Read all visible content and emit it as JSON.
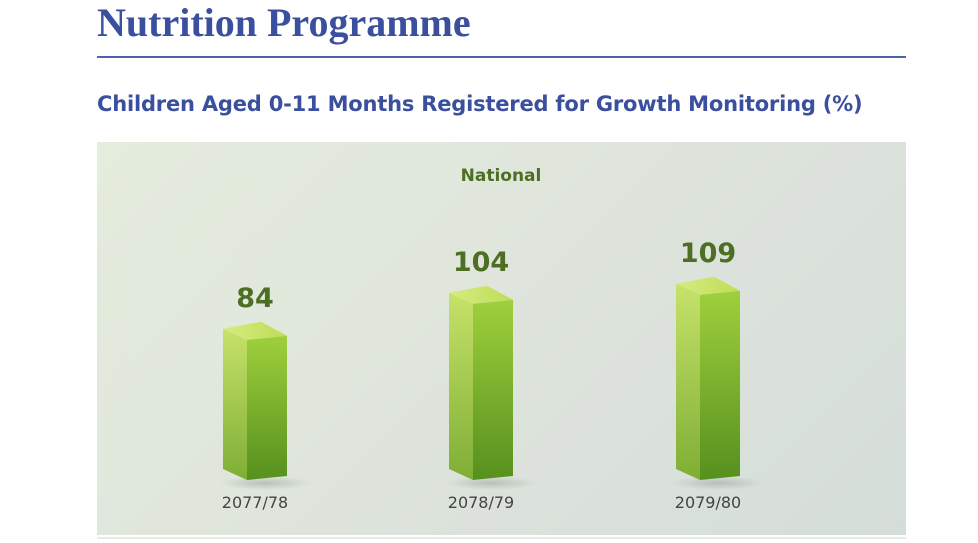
{
  "page": {
    "title": "Nutrition Programme"
  },
  "colors": {
    "title": "#3a4f9e",
    "bar_front_light": "#9fce3e",
    "bar_front_dark": "#4f8a1c",
    "bar_top": "#c9e56a",
    "label_green": "#4d6f23"
  },
  "chart_data": {
    "type": "bar",
    "title": "Children Aged 0-11 Months Registered for Growth Monitoring (%)",
    "series": [
      {
        "name": "National",
        "values": [
          84,
          104,
          109
        ]
      }
    ],
    "categories": [
      "2077/78",
      "2078/79",
      "2079/80"
    ],
    "data_labels": [
      "84",
      "104",
      "109"
    ],
    "xlabel": "",
    "ylabel": "",
    "grid": false,
    "legend": "top-center"
  }
}
